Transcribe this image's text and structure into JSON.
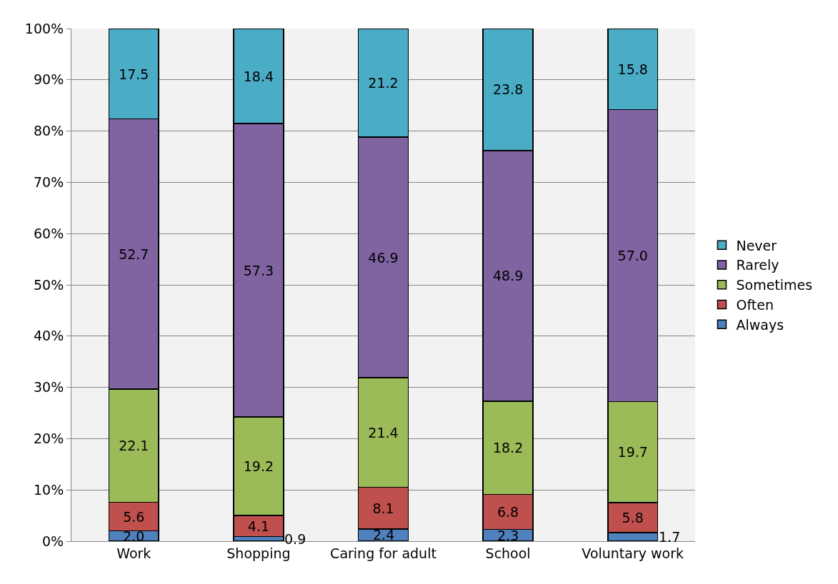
{
  "chart_data": {
    "type": "bar",
    "stacked": true,
    "categories": [
      "Work",
      "Shopping",
      "Caring for adult",
      "School",
      "Voluntary work"
    ],
    "series": [
      {
        "name": "Always",
        "color": "#4f81bd",
        "values": [
          2.0,
          0.9,
          2.4,
          2.3,
          1.7
        ],
        "value_labels": [
          "2.0",
          "0.9",
          "2.4",
          "2.3",
          "1.7"
        ]
      },
      {
        "name": "Often",
        "color": "#c0504d",
        "values": [
          5.6,
          4.1,
          8.1,
          6.8,
          5.8
        ],
        "value_labels": [
          "5.6",
          "4.1",
          "8.1",
          "6.8",
          "5.8"
        ]
      },
      {
        "name": "Sometimes",
        "color": "#9bbb59",
        "values": [
          22.1,
          19.2,
          21.4,
          18.2,
          19.7
        ],
        "value_labels": [
          "22.1",
          "19.2",
          "21.4",
          "18.2",
          "19.7"
        ]
      },
      {
        "name": "Rarely",
        "color": "#8064a2",
        "values": [
          52.7,
          57.3,
          46.9,
          48.9,
          57.0
        ],
        "value_labels": [
          "52.7",
          "57.3",
          "46.9",
          "48.9",
          "57.0"
        ]
      },
      {
        "name": "Never",
        "color": "#4bacc6",
        "values": [
          17.5,
          18.4,
          21.2,
          23.8,
          15.8
        ],
        "value_labels": [
          "17.5",
          "18.4",
          "21.2",
          "23.8",
          "15.8"
        ]
      }
    ],
    "ylim": [
      0,
      100
    ],
    "yticks": [
      {
        "value": 0,
        "label": "0%"
      },
      {
        "value": 10,
        "label": "10%"
      },
      {
        "value": 20,
        "label": "20%"
      },
      {
        "value": 30,
        "label": "30%"
      },
      {
        "value": 40,
        "label": "40%"
      },
      {
        "value": 50,
        "label": "50%"
      },
      {
        "value": 60,
        "label": "60%"
      },
      {
        "value": 70,
        "label": "70%"
      },
      {
        "value": 80,
        "label": "80%"
      },
      {
        "value": 90,
        "label": "90%"
      },
      {
        "value": 100,
        "label": "100%"
      }
    ],
    "grid": "y",
    "legend": "right"
  }
}
